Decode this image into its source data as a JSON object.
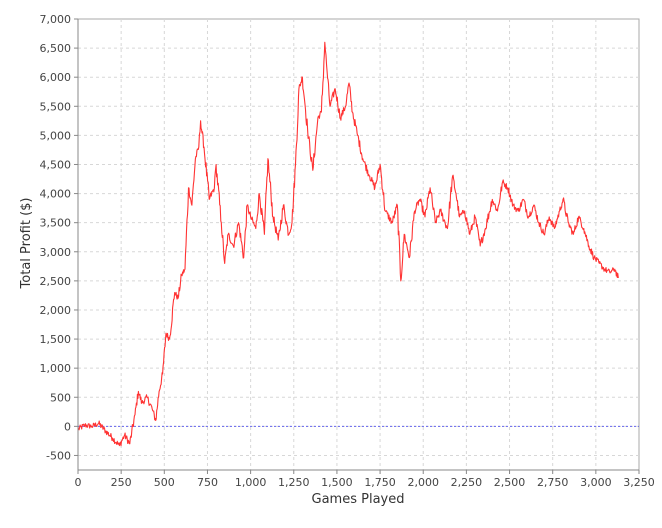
{
  "chart_data": {
    "type": "line",
    "title": "",
    "xlabel": "Games Played",
    "ylabel": "Total Profit ($)",
    "xlim": [
      0,
      3250
    ],
    "ylim": [
      -750,
      7000
    ],
    "x_ticks": [
      0,
      250,
      500,
      750,
      1000,
      1250,
      1500,
      1750,
      2000,
      2250,
      2500,
      2750,
      3000,
      3250
    ],
    "x_tick_labels": [
      "0",
      "250",
      "500",
      "750",
      "1,000",
      "1,250",
      "1,500",
      "1,750",
      "2,000",
      "2,250",
      "2,500",
      "2,750",
      "3,000",
      "3,250"
    ],
    "y_ticks": [
      -500,
      0,
      500,
      1000,
      1500,
      2000,
      2500,
      3000,
      3500,
      4000,
      4500,
      5000,
      5500,
      6000,
      6500,
      7000
    ],
    "y_tick_labels": [
      "-500",
      "0",
      "500",
      "1,000",
      "1,500",
      "2,000",
      "2,500",
      "3,000",
      "3,500",
      "4,000",
      "4,500",
      "5,000",
      "5,500",
      "6,000",
      "6,500",
      "7,000"
    ],
    "grid": true,
    "baseline": {
      "y": 0,
      "color": "#6666ee"
    },
    "series": [
      {
        "color": "#ff3333",
        "x": [
          0,
          40,
          80,
          120,
          160,
          200,
          240,
          270,
          300,
          330,
          350,
          370,
          400,
          430,
          450,
          470,
          490,
          510,
          530,
          560,
          580,
          600,
          620,
          640,
          660,
          680,
          700,
          710,
          730,
          760,
          790,
          800,
          830,
          850,
          870,
          900,
          930,
          960,
          980,
          1000,
          1030,
          1050,
          1080,
          1100,
          1130,
          1160,
          1190,
          1220,
          1240,
          1260,
          1280,
          1300,
          1330,
          1360,
          1390,
          1410,
          1430,
          1440,
          1460,
          1490,
          1520,
          1550,
          1570,
          1590,
          1620,
          1650,
          1690,
          1720,
          1750,
          1780,
          1820,
          1850,
          1870,
          1890,
          1920,
          1950,
          1980,
          2010,
          2040,
          2070,
          2100,
          2140,
          2170,
          2190,
          2210,
          2240,
          2270,
          2300,
          2330,
          2360,
          2400,
          2430,
          2460,
          2490,
          2520,
          2550,
          2580,
          2610,
          2640,
          2670,
          2700,
          2730,
          2760,
          2790,
          2810,
          2840,
          2870,
          2900,
          2930,
          2960,
          2990,
          3020,
          3050,
          3080,
          3110,
          3130
        ],
        "y": [
          -50,
          20,
          0,
          50,
          -80,
          -200,
          -330,
          -150,
          -300,
          200,
          600,
          400,
          500,
          300,
          100,
          600,
          900,
          1600,
          1500,
          2300,
          2200,
          2600,
          2700,
          4100,
          3800,
          4600,
          4800,
          5250,
          4800,
          3900,
          4100,
          4500,
          3500,
          2800,
          3300,
          3100,
          3500,
          2900,
          3800,
          3600,
          3400,
          4000,
          3300,
          4600,
          3600,
          3200,
          3800,
          3300,
          3500,
          4500,
          5800,
          6000,
          5100,
          4400,
          5300,
          5400,
          6600,
          6200,
          5500,
          5800,
          5300,
          5500,
          5900,
          5400,
          5000,
          4600,
          4300,
          4100,
          4500,
          3700,
          3500,
          3800,
          2500,
          3300,
          2900,
          3700,
          3900,
          3600,
          4100,
          3500,
          3700,
          3400,
          4300,
          4000,
          3600,
          3700,
          3300,
          3600,
          3100,
          3400,
          3900,
          3700,
          4200,
          4100,
          3800,
          3700,
          3900,
          3600,
          3800,
          3500,
          3300,
          3600,
          3400,
          3700,
          3900,
          3500,
          3300,
          3600,
          3400,
          3100,
          2900,
          2800,
          2700,
          2650,
          2700,
          2550
        ]
      }
    ]
  }
}
